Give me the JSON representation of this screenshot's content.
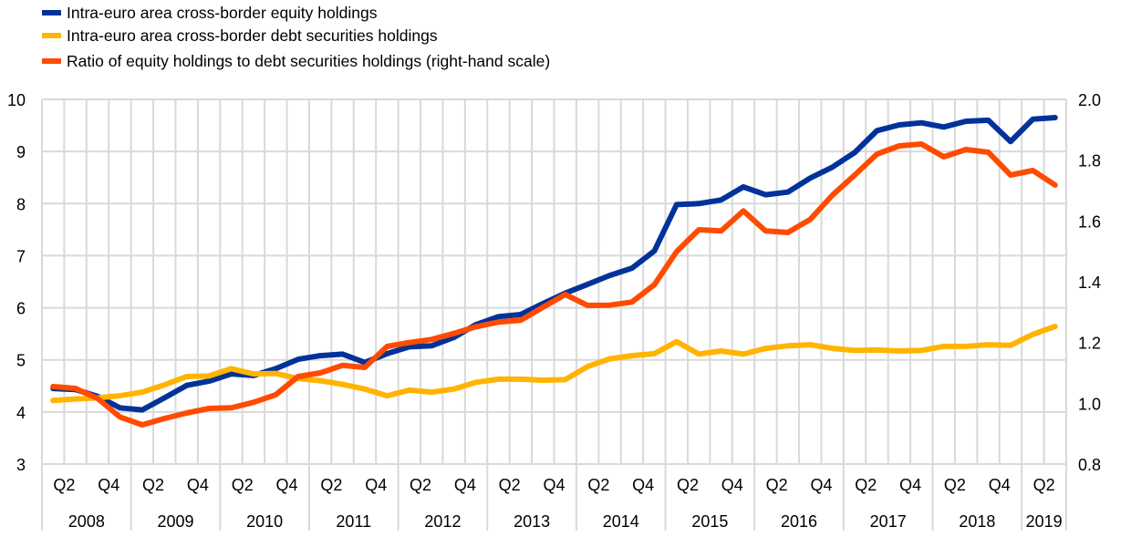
{
  "chart_data": {
    "type": "line",
    "title": "",
    "xlabel": "",
    "ylabel_left": "",
    "ylabel_right": "",
    "legend_position": "top-left",
    "grid": true,
    "x": [
      "2008Q1",
      "2008Q2",
      "2008Q3",
      "2008Q4",
      "2009Q1",
      "2009Q2",
      "2009Q3",
      "2009Q4",
      "2010Q1",
      "2010Q2",
      "2010Q3",
      "2010Q4",
      "2011Q1",
      "2011Q2",
      "2011Q3",
      "2011Q4",
      "2012Q1",
      "2012Q2",
      "2012Q3",
      "2012Q4",
      "2013Q1",
      "2013Q2",
      "2013Q3",
      "2013Q4",
      "2014Q1",
      "2014Q2",
      "2014Q3",
      "2014Q4",
      "2015Q1",
      "2015Q2",
      "2015Q3",
      "2015Q4",
      "2016Q1",
      "2016Q2",
      "2016Q3",
      "2016Q4",
      "2017Q1",
      "2017Q2",
      "2017Q3",
      "2017Q4",
      "2018Q1",
      "2018Q2",
      "2018Q3",
      "2018Q4",
      "2019Q1",
      "2019Q2"
    ],
    "quarter_tick_labels": [
      "",
      "Q2",
      "",
      "Q4",
      "",
      "Q2",
      "",
      "Q4",
      "",
      "Q2",
      "",
      "Q4",
      "",
      "Q2",
      "",
      "Q4",
      "",
      "Q2",
      "",
      "Q4",
      "",
      "Q2",
      "",
      "Q4",
      "",
      "Q2",
      "",
      "Q4",
      "",
      "Q2",
      "",
      "Q4",
      "",
      "Q2",
      "",
      "Q4",
      "",
      "Q2",
      "",
      "Q4",
      "",
      "Q2",
      "",
      "Q4",
      "",
      "Q2"
    ],
    "year_labels": [
      "2008",
      "2009",
      "2010",
      "2011",
      "2012",
      "2013",
      "2014",
      "2015",
      "2016",
      "2017",
      "2018",
      "2019"
    ],
    "y_left": {
      "range": [
        3,
        10
      ],
      "ticks": [
        "3",
        "4",
        "5",
        "6",
        "7",
        "8",
        "9",
        "10"
      ],
      "tick_values": [
        3,
        4,
        5,
        6,
        7,
        8,
        9,
        10
      ]
    },
    "y_right": {
      "range": [
        0.8,
        2.0
      ],
      "ticks": [
        "0.8",
        "1.0",
        "1.2",
        "1.4",
        "1.6",
        "1.8",
        "2.0"
      ],
      "tick_values": [
        0.8,
        1.0,
        1.2,
        1.4,
        1.6,
        1.8,
        2.0
      ]
    },
    "series": [
      {
        "name": "Intra-euro area cross-border equity holdings",
        "axis": "left",
        "color": "#003299",
        "values": [
          4.45,
          4.43,
          4.3,
          4.08,
          4.04,
          4.27,
          4.51,
          4.59,
          4.73,
          4.7,
          4.83,
          5.01,
          5.08,
          5.11,
          4.95,
          5.12,
          5.25,
          5.27,
          5.43,
          5.68,
          5.83,
          5.87,
          6.08,
          6.28,
          6.45,
          6.62,
          6.76,
          7.09,
          7.98,
          8.0,
          8.07,
          8.32,
          8.17,
          8.22,
          8.49,
          8.7,
          8.98,
          9.4,
          9.51,
          9.55,
          9.47,
          9.58,
          9.6,
          9.19,
          9.62,
          9.65
        ]
      },
      {
        "name": "Intra-euro area cross-border debt securities holdings",
        "axis": "left",
        "color": "#FFB400",
        "values": [
          4.22,
          4.25,
          4.27,
          4.31,
          4.38,
          4.52,
          4.68,
          4.69,
          4.83,
          4.73,
          4.74,
          4.64,
          4.6,
          4.53,
          4.44,
          4.31,
          4.42,
          4.38,
          4.44,
          4.57,
          4.63,
          4.63,
          4.61,
          4.62,
          4.87,
          5.02,
          5.08,
          5.12,
          5.35,
          5.11,
          5.17,
          5.11,
          5.22,
          5.27,
          5.29,
          5.22,
          5.18,
          5.19,
          5.17,
          5.18,
          5.26,
          5.26,
          5.29,
          5.28,
          5.49,
          5.64
        ]
      },
      {
        "name": "Ratio of equity holdings to debt securities holdings (right-hand scale)",
        "axis": "right",
        "color": "#FF4B00",
        "values": [
          1.055,
          1.049,
          1.016,
          0.955,
          0.929,
          0.95,
          0.968,
          0.983,
          0.985,
          1.003,
          1.028,
          1.088,
          1.1,
          1.125,
          1.118,
          1.187,
          1.2,
          1.21,
          1.23,
          1.252,
          1.267,
          1.273,
          1.316,
          1.358,
          1.322,
          1.323,
          1.333,
          1.39,
          1.499,
          1.571,
          1.567,
          1.633,
          1.567,
          1.562,
          1.605,
          1.685,
          1.751,
          1.82,
          1.847,
          1.853,
          1.811,
          1.835,
          1.826,
          1.751,
          1.766,
          1.718
        ]
      }
    ]
  },
  "legend": {
    "items": [
      {
        "label": "Intra-euro area cross-border equity holdings",
        "color": "#003299"
      },
      {
        "label": "Intra-euro area cross-border debt securities holdings",
        "color": "#FFB400"
      },
      {
        "label": "Ratio of equity holdings to debt securities holdings (right-hand scale)",
        "color": "#FF4B00"
      }
    ]
  },
  "style": {
    "grid_color": "#D9D9D9"
  }
}
